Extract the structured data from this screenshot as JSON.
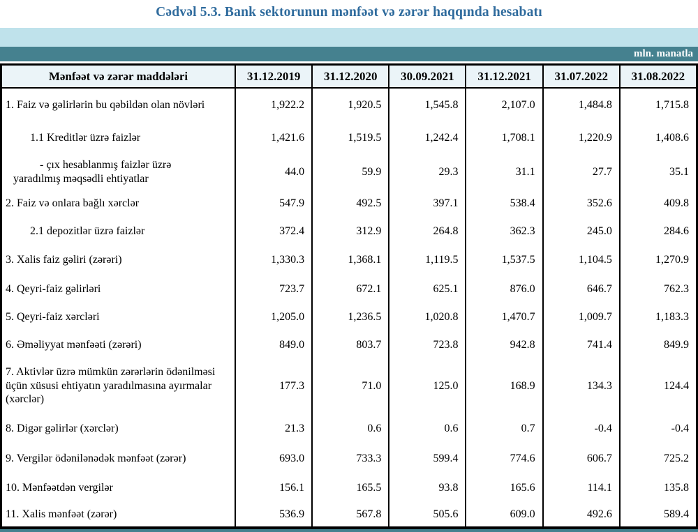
{
  "title": "Cədvəl 5.3. Bank sektorunun mənfəət və zərər haqqında hesabatı",
  "unit_label": "mln. manatla",
  "colors": {
    "title_text": "#2f6b9d",
    "band_light_blue": "#bfe2eb",
    "band_teal": "#45818f",
    "header_bg": "#ebf4f8",
    "border": "#000000"
  },
  "table": {
    "header": {
      "label": "Mənfəət və zərər maddələri",
      "columns": [
        "31.12.2019",
        "31.12.2020",
        "30.09.2021",
        "31.12.2021",
        "31.07.2022",
        "31.08.2022"
      ]
    },
    "rows": [
      {
        "label": "1. Faiz və gəlirlərin bu qəbildən olan növləri",
        "indent": 0,
        "values": [
          "1,922.2",
          "1,920.5",
          "1,545.8",
          "2,107.0",
          "1,484.8",
          "1,715.8"
        ]
      },
      {
        "label": "1.1 Kreditlər üzrə faizlər",
        "indent": 1,
        "values": [
          "1,421.6",
          "1,519.5",
          "1,242.4",
          "1,708.1",
          "1,220.9",
          "1,408.6"
        ]
      },
      {
        "label": "-  çıx hesablanmış faizlər üzrə\nyaradılmış məqsədli ehtiyatlar",
        "indent": 2,
        "values": [
          "44.0",
          "59.9",
          "29.3",
          "31.1",
          "27.7",
          "35.1"
        ]
      },
      {
        "label": "2. Faiz və onlara bağlı xərclər",
        "indent": 0,
        "values": [
          "547.9",
          "492.5",
          "397.1",
          "538.4",
          "352.6",
          "409.8"
        ]
      },
      {
        "label": "2.1 depozitlər üzrə faizlər",
        "indent": 1,
        "values": [
          "372.4",
          "312.9",
          "264.8",
          "362.3",
          "245.0",
          "284.6"
        ]
      },
      {
        "label": "3. Xalis faiz gəliri (zərəri)",
        "indent": 0,
        "values": [
          "1,330.3",
          "1,368.1",
          "1,119.5",
          "1,537.5",
          "1,104.5",
          "1,270.9"
        ]
      },
      {
        "label": "4. Qeyri-faiz gəlirləri",
        "indent": 0,
        "values": [
          "723.7",
          "672.1",
          "625.1",
          "876.0",
          "646.7",
          "762.3"
        ]
      },
      {
        "label": "5. Qeyri-faiz xərcləri",
        "indent": 0,
        "values": [
          "1,205.0",
          "1,236.5",
          "1,020.8",
          "1,470.7",
          "1,009.7",
          "1,183.3"
        ]
      },
      {
        "label": "6. Əməliyyat mənfəəti (zərəri)",
        "indent": 0,
        "values": [
          "849.0",
          "803.7",
          "723.8",
          "942.8",
          "741.4",
          "849.9"
        ]
      },
      {
        "label": "7. Aktivlər üzrə mümkün zərərlərin ödənilməsi üçün xüsusi ehtiyatın yaradılmasına ayırmalar (xərclər)",
        "indent": 0,
        "values": [
          "177.3",
          "71.0",
          "125.0",
          "168.9",
          "134.3",
          "124.4"
        ]
      },
      {
        "label": "8. Digər gəlirlər (xərclər)",
        "indent": 0,
        "values": [
          "21.3",
          "0.6",
          "0.6",
          "0.7",
          "-0.4",
          "-0.4"
        ]
      },
      {
        "label": "9. Vergilər ödənilənədək mənfəət (zərər)",
        "indent": 0,
        "values": [
          "693.0",
          "733.3",
          "599.4",
          "774.6",
          "606.7",
          "725.2"
        ]
      },
      {
        "label": "10. Mənfəətdən vergilər",
        "indent": 0,
        "values": [
          "156.1",
          "165.5",
          "93.8",
          "165.6",
          "114.1",
          "135.8"
        ]
      },
      {
        "label": "11. Xalis mənfəət (zərər)",
        "indent": 0,
        "values": [
          "536.9",
          "567.8",
          "505.6",
          "609.0",
          "492.6",
          "589.4"
        ]
      }
    ]
  }
}
